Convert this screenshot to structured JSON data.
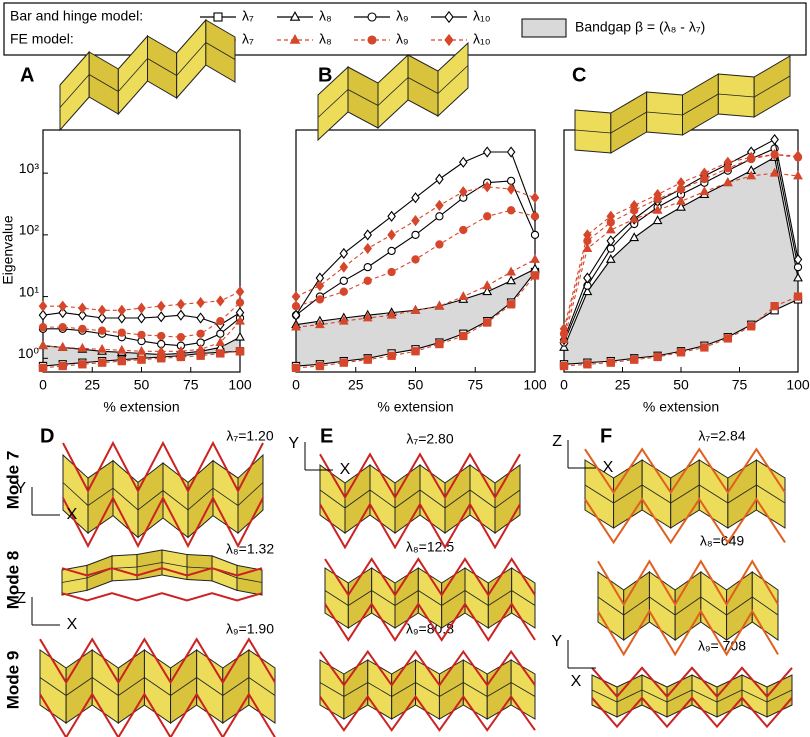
{
  "legend": {
    "bh_label": "Bar and hinge model:",
    "fe_label": "FE model:"
  },
  "bandgap": {
    "label": "Bandgap β = (λ₈ - λ₇)",
    "color": "#d9d9d9"
  },
  "chart_data": [
    {
      "type": "line",
      "panel": "A",
      "y_label": "Eigenvalue",
      "x_label": "% extension",
      "yscale": "log",
      "x": [
        0,
        10,
        20,
        30,
        40,
        50,
        60,
        70,
        80,
        90,
        100
      ],
      "xlim": [
        0,
        100
      ],
      "xticks": [
        0,
        25,
        50,
        75,
        100
      ],
      "ylim": [
        0.6,
        5000
      ],
      "yticks": [
        {
          "value": 1,
          "label": "10⁰"
        },
        {
          "value": 10,
          "label": "10¹"
        },
        {
          "value": 100,
          "label": "10²"
        },
        {
          "value": 1000,
          "label": "10³"
        }
      ],
      "series": [
        {
          "name": "λ₇",
          "color": "#000000",
          "marker": "square",
          "dash": false,
          "values": [
            0.75,
            0.8,
            0.85,
            0.9,
            0.95,
            1.0,
            1.05,
            1.1,
            1.2,
            1.25,
            1.3
          ]
        },
        {
          "name": "λ₈",
          "color": "#000000",
          "marker": "triangle",
          "dash": false,
          "values": [
            1.6,
            1.5,
            1.4,
            1.3,
            1.25,
            1.2,
            1.15,
            1.2,
            1.3,
            1.5,
            2.2
          ]
        },
        {
          "name": "λ₉",
          "color": "#000000",
          "marker": "circle",
          "dash": false,
          "values": [
            3.0,
            3.0,
            2.8,
            2.5,
            2.2,
            1.9,
            1.7,
            1.6,
            1.8,
            2.5,
            4.5
          ]
        },
        {
          "name": "λ₁₀",
          "color": "#000000",
          "marker": "diamond",
          "dash": false,
          "values": [
            5.0,
            5.5,
            5.0,
            4.5,
            4.5,
            4.5,
            4.7,
            5.0,
            4.5,
            3.5,
            5.5
          ]
        },
        {
          "name": "λ₇",
          "color": "#d6462b",
          "marker": "square",
          "dash": true,
          "values": [
            0.7,
            0.75,
            0.8,
            0.85,
            0.9,
            0.95,
            1.0,
            1.05,
            1.1,
            1.2,
            1.3
          ]
        },
        {
          "name": "λ₈",
          "color": "#d6462b",
          "marker": "triangle",
          "dash": true,
          "values": [
            1.6,
            1.5,
            1.45,
            1.4,
            1.35,
            1.3,
            1.3,
            1.3,
            1.4,
            1.8,
            4
          ]
        },
        {
          "name": "λ₉",
          "color": "#d6462b",
          "marker": "circle",
          "dash": true,
          "values": [
            3.2,
            3.2,
            3.0,
            2.8,
            2.6,
            2.4,
            2.3,
            2.2,
            2.5,
            4,
            8
          ]
        },
        {
          "name": "λ₁₀",
          "color": "#d6462b",
          "marker": "diamond",
          "dash": true,
          "values": [
            7,
            7,
            6.5,
            6,
            6,
            6.5,
            7,
            7.5,
            8,
            8.5,
            12
          ]
        }
      ]
    },
    {
      "type": "line",
      "panel": "B",
      "x_label": "% extension",
      "yscale": "log",
      "x": [
        0,
        10,
        20,
        30,
        40,
        50,
        60,
        70,
        80,
        90,
        100
      ],
      "xlim": [
        0,
        100
      ],
      "xticks": [
        0,
        25,
        50,
        75,
        100
      ],
      "ylim": [
        0.6,
        5000
      ],
      "series": [
        {
          "name": "λ₇",
          "color": "#000000",
          "marker": "square",
          "dash": false,
          "values": [
            0.75,
            0.8,
            0.9,
            1.0,
            1.2,
            1.4,
            1.8,
            2.5,
            4,
            8,
            25
          ]
        },
        {
          "name": "λ₈",
          "color": "#000000",
          "marker": "triangle",
          "dash": false,
          "values": [
            3.5,
            4,
            4.5,
            5,
            5.5,
            6,
            7,
            9,
            12,
            18,
            28
          ]
        },
        {
          "name": "λ₉",
          "color": "#000000",
          "marker": "circle",
          "dash": false,
          "values": [
            5,
            10,
            18,
            30,
            55,
            100,
            200,
            400,
            700,
            750,
            100
          ]
        },
        {
          "name": "λ₁₀",
          "color": "#000000",
          "marker": "diamond",
          "dash": false,
          "values": [
            5,
            20,
            50,
            100,
            200,
            400,
            800,
            1500,
            2200,
            2200,
            200
          ]
        },
        {
          "name": "λ₇",
          "color": "#d6462b",
          "marker": "square",
          "dash": true,
          "values": [
            0.7,
            0.75,
            0.85,
            0.95,
            1.1,
            1.3,
            1.7,
            2.3,
            3.8,
            7.5,
            22
          ]
        },
        {
          "name": "λ₈",
          "color": "#d6462b",
          "marker": "triangle",
          "dash": true,
          "values": [
            3.2,
            3.5,
            4,
            4.5,
            5,
            6,
            7,
            10,
            15,
            25,
            40
          ]
        },
        {
          "name": "λ₉",
          "color": "#d6462b",
          "marker": "circle",
          "dash": true,
          "values": [
            7,
            9,
            12,
            18,
            25,
            40,
            70,
            120,
            200,
            250,
            200
          ]
        },
        {
          "name": "λ₁₀",
          "color": "#d6462b",
          "marker": "diamond",
          "dash": true,
          "values": [
            10,
            15,
            30,
            60,
            100,
            170,
            300,
            500,
            600,
            550,
            400
          ]
        }
      ]
    },
    {
      "type": "line",
      "panel": "C",
      "x_label": "% extension",
      "yscale": "log",
      "x": [
        0,
        10,
        20,
        30,
        40,
        50,
        60,
        70,
        80,
        90,
        100
      ],
      "xlim": [
        0,
        100
      ],
      "xticks": [
        0,
        25,
        50,
        75,
        100
      ],
      "ylim": [
        0.6,
        5000
      ],
      "series": [
        {
          "name": "λ₇",
          "color": "#000000",
          "marker": "square",
          "dash": false,
          "values": [
            0.8,
            0.85,
            0.9,
            1.0,
            1.1,
            1.3,
            1.6,
            2.2,
            3.5,
            6,
            9
          ]
        },
        {
          "name": "λ₈",
          "color": "#000000",
          "marker": "triangle",
          "dash": false,
          "values": [
            1.5,
            12,
            40,
            90,
            170,
            280,
            450,
            700,
            1100,
            1800,
            20
          ]
        },
        {
          "name": "λ₉",
          "color": "#000000",
          "marker": "circle",
          "dash": false,
          "values": [
            1.8,
            15,
            60,
            150,
            280,
            450,
            700,
            1100,
            1700,
            2500,
            30
          ]
        },
        {
          "name": "λ₁₀",
          "color": "#000000",
          "marker": "diamond",
          "dash": false,
          "values": [
            2,
            20,
            80,
            180,
            350,
            550,
            900,
            1400,
            2200,
            3500,
            40
          ]
        },
        {
          "name": "λ₇",
          "color": "#d6462b",
          "marker": "square",
          "dash": true,
          "values": [
            0.75,
            0.8,
            0.85,
            0.95,
            1.05,
            1.25,
            1.5,
            2.1,
            3.3,
            7,
            10
          ]
        },
        {
          "name": "λ₈",
          "color": "#d6462b",
          "marker": "triangle",
          "dash": true,
          "values": [
            2,
            60,
            120,
            180,
            250,
            350,
            500,
            700,
            900,
            1000,
            900
          ]
        },
        {
          "name": "λ₉",
          "color": "#d6462b",
          "marker": "circle",
          "dash": true,
          "values": [
            2.5,
            80,
            160,
            250,
            380,
            550,
            800,
            1200,
            1700,
            2000,
            1800
          ]
        },
        {
          "name": "λ₁₀",
          "color": "#d6462b",
          "marker": "diamond",
          "dash": true,
          "values": [
            3,
            100,
            200,
            300,
            450,
            700,
            1000,
            1500,
            1800,
            2000,
            1900
          ]
        }
      ]
    }
  ],
  "modes": {
    "rows": [
      "Mode 7",
      "Mode 8",
      "Mode 9"
    ],
    "panels": [
      {
        "letter": "D",
        "labels": [
          "λ₇=1.20",
          "λ₈=1.32",
          "λ₉=1.90"
        ],
        "axes": [
          [
            "Y",
            "X"
          ],
          [
            "Z",
            "X"
          ]
        ]
      },
      {
        "letter": "E",
        "labels": [
          "λ₇=2.80",
          "λ₈=12.5",
          "λ₉=80.8"
        ],
        "axes": [
          [
            "Y",
            "X"
          ]
        ]
      },
      {
        "letter": "F",
        "labels": [
          "λ₇=2.84",
          "λ₈=649",
          "λ₉= 708"
        ],
        "axes": [
          [
            "Z",
            "X"
          ],
          [
            "Y",
            "X"
          ]
        ]
      }
    ]
  }
}
